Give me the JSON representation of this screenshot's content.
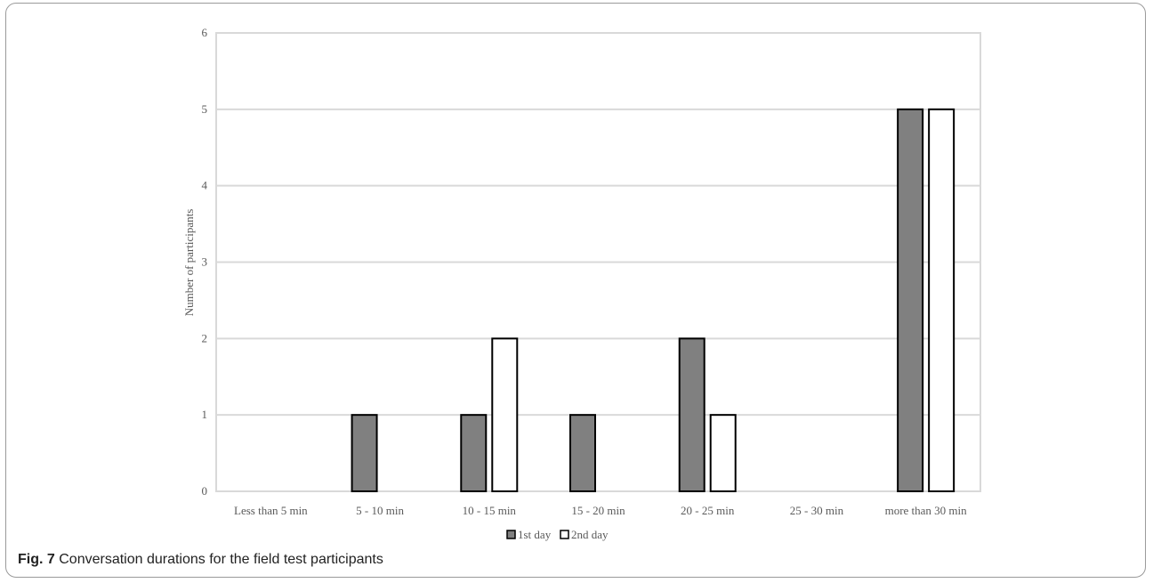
{
  "caption": {
    "label": "Fig. 7",
    "text": "Conversation durations for the field test participants"
  },
  "chart_data": {
    "type": "bar",
    "title": "",
    "xlabel": "",
    "ylabel": "Number of participants",
    "ylim": [
      0,
      6
    ],
    "yticks": [
      0,
      1,
      2,
      3,
      4,
      5,
      6
    ],
    "grid": true,
    "legend_position": "bottom",
    "categories": [
      "Less than 5 min",
      "5 - 10 min",
      "10 - 15 min",
      "15 - 20 min",
      "20 - 25 min",
      "25 - 30 min",
      "more than 30 min"
    ],
    "series": [
      {
        "name": "1st day",
        "values": [
          0,
          1,
          1,
          1,
          2,
          0,
          5
        ],
        "color": "#808080"
      },
      {
        "name": "2nd day",
        "values": [
          0,
          0,
          2,
          0,
          1,
          0,
          5
        ],
        "color": "#ffffff"
      }
    ]
  }
}
